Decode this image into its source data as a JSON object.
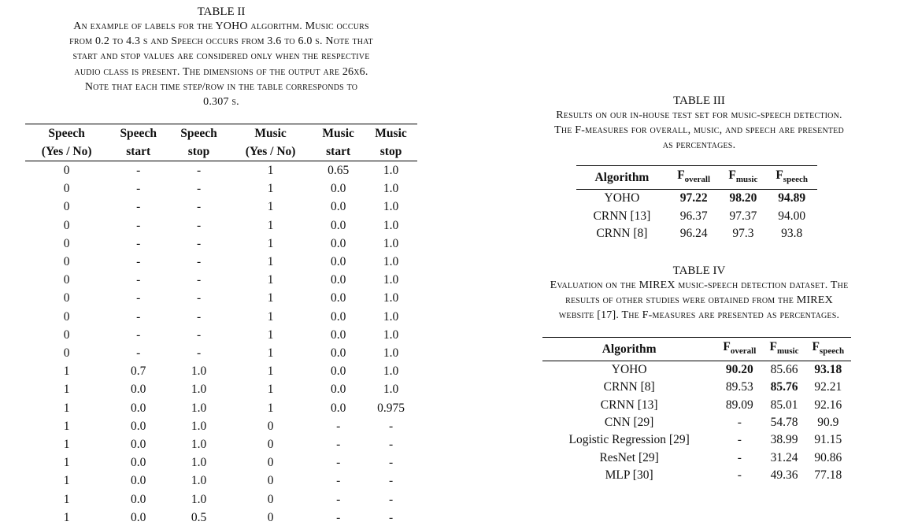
{
  "table2": {
    "title": "TABLE II",
    "caption": [
      "An example of labels for the YOHO algorithm. Music occurs",
      "from 0.2 to 4.3 s and Speech occurs from 3.6 to 6.0 s. Note that",
      "start and stop values are considered only when the respective",
      "audio class is present. The dimensions of the output are 26x6.",
      "Note that each time step/row in the table corresponds to",
      "0.307 s."
    ],
    "headers_top": [
      "Speech",
      "Speech",
      "Speech",
      "Music",
      "Music",
      "Music"
    ],
    "headers_bottom": [
      "(Yes / No)",
      "start",
      "stop",
      "(Yes / No)",
      "start",
      "stop"
    ],
    "rows": [
      [
        "0",
        "-",
        "-",
        "1",
        "0.65",
        "1.0"
      ],
      [
        "0",
        "-",
        "-",
        "1",
        "0.0",
        "1.0"
      ],
      [
        "0",
        "-",
        "-",
        "1",
        "0.0",
        "1.0"
      ],
      [
        "0",
        "-",
        "-",
        "1",
        "0.0",
        "1.0"
      ],
      [
        "0",
        "-",
        "-",
        "1",
        "0.0",
        "1.0"
      ],
      [
        "0",
        "-",
        "-",
        "1",
        "0.0",
        "1.0"
      ],
      [
        "0",
        "-",
        "-",
        "1",
        "0.0",
        "1.0"
      ],
      [
        "0",
        "-",
        "-",
        "1",
        "0.0",
        "1.0"
      ],
      [
        "0",
        "-",
        "-",
        "1",
        "0.0",
        "1.0"
      ],
      [
        "0",
        "-",
        "-",
        "1",
        "0.0",
        "1.0"
      ],
      [
        "0",
        "-",
        "-",
        "1",
        "0.0",
        "1.0"
      ],
      [
        "1",
        "0.7",
        "1.0",
        "1",
        "0.0",
        "1.0"
      ],
      [
        "1",
        "0.0",
        "1.0",
        "1",
        "0.0",
        "1.0"
      ],
      [
        "1",
        "0.0",
        "1.0",
        "1",
        "0.0",
        "0.975"
      ],
      [
        "1",
        "0.0",
        "1.0",
        "0",
        "-",
        "-"
      ],
      [
        "1",
        "0.0",
        "1.0",
        "0",
        "-",
        "-"
      ],
      [
        "1",
        "0.0",
        "1.0",
        "0",
        "-",
        "-"
      ],
      [
        "1",
        "0.0",
        "1.0",
        "0",
        "-",
        "-"
      ],
      [
        "1",
        "0.0",
        "1.0",
        "0",
        "-",
        "-"
      ],
      [
        "1",
        "0.0",
        "0.5",
        "0",
        "-",
        "-"
      ]
    ]
  },
  "table3": {
    "title": "TABLE III",
    "caption": [
      "Results on our in-house test set for music-speech detection.",
      "The F-measures for overall, music, and speech are presented",
      "as percentages."
    ],
    "header_algorithm": "Algorithm",
    "header_f": "F",
    "header_subs": [
      "overall",
      "music",
      "speech"
    ],
    "rows": [
      {
        "name": "YOHO",
        "values": [
          "97.22",
          "98.20",
          "94.89"
        ],
        "bold": [
          true,
          true,
          true
        ]
      },
      {
        "name": "CRNN [13]",
        "values": [
          "96.37",
          "97.37",
          "94.00"
        ],
        "bold": [
          false,
          false,
          false
        ]
      },
      {
        "name": "CRNN [8]",
        "values": [
          "96.24",
          "97.3",
          "93.8"
        ],
        "bold": [
          false,
          false,
          false
        ]
      }
    ]
  },
  "table4": {
    "title": "TABLE IV",
    "caption": [
      "Evaluation on the MIREX music-speech detection dataset. The",
      "results of other studies were obtained from the MIREX",
      "website [17]. The F-measures are presented as percentages."
    ],
    "header_algorithm": "Algorithm",
    "header_f": "F",
    "header_subs": [
      "overall",
      "music",
      "speech"
    ],
    "rows": [
      {
        "name": "YOHO",
        "values": [
          "90.20",
          "85.66",
          "93.18"
        ],
        "bold": [
          true,
          false,
          true
        ]
      },
      {
        "name": "CRNN [8]",
        "values": [
          "89.53",
          "85.76",
          "92.21"
        ],
        "bold": [
          false,
          true,
          false
        ]
      },
      {
        "name": "CRNN [13]",
        "values": [
          "89.09",
          "85.01",
          "92.16"
        ],
        "bold": [
          false,
          false,
          false
        ]
      },
      {
        "name": "CNN [29]",
        "values": [
          "-",
          "54.78",
          "90.9"
        ],
        "bold": [
          false,
          false,
          false
        ]
      },
      {
        "name": "Logistic Regression [29]",
        "values": [
          "-",
          "38.99",
          "91.15"
        ],
        "bold": [
          false,
          false,
          false
        ]
      },
      {
        "name": "ResNet [29]",
        "values": [
          "-",
          "31.24",
          "90.86"
        ],
        "bold": [
          false,
          false,
          false
        ]
      },
      {
        "name": "MLP [30]",
        "values": [
          "-",
          "49.36",
          "77.18"
        ],
        "bold": [
          false,
          false,
          false
        ]
      }
    ]
  }
}
